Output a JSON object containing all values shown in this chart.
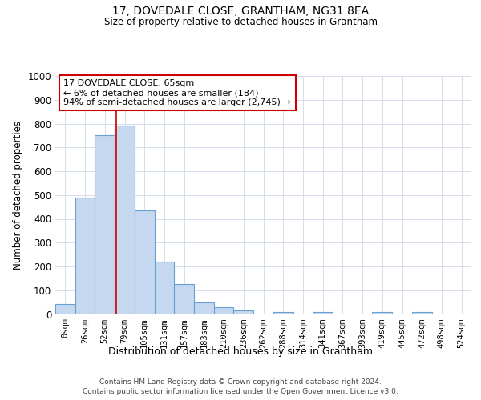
{
  "title": "17, DOVEDALE CLOSE, GRANTHAM, NG31 8EA",
  "subtitle": "Size of property relative to detached houses in Grantham",
  "xlabel": "Distribution of detached houses by size in Grantham",
  "ylabel": "Number of detached properties",
  "bar_labels": [
    "0sqm",
    "26sqm",
    "52sqm",
    "79sqm",
    "105sqm",
    "131sqm",
    "157sqm",
    "183sqm",
    "210sqm",
    "236sqm",
    "262sqm",
    "288sqm",
    "314sqm",
    "341sqm",
    "367sqm",
    "393sqm",
    "419sqm",
    "445sqm",
    "472sqm",
    "498sqm",
    "524sqm"
  ],
  "bar_values": [
    42,
    490,
    750,
    790,
    435,
    220,
    125,
    50,
    28,
    15,
    0,
    10,
    0,
    7,
    0,
    0,
    8,
    0,
    8,
    0,
    0
  ],
  "bar_color": "#c5d8f0",
  "bar_edge_color": "#6aa0d0",
  "ylim": [
    0,
    1000
  ],
  "yticks": [
    0,
    100,
    200,
    300,
    400,
    500,
    600,
    700,
    800,
    900,
    1000
  ],
  "vline_color": "#cc0000",
  "vline_x": 2.575,
  "annotation_text": "17 DOVEDALE CLOSE: 65sqm\n← 6% of detached houses are smaller (184)\n94% of semi-detached houses are larger (2,745) →",
  "annotation_box_edgecolor": "#cc0000",
  "footer_line1": "Contains HM Land Registry data © Crown copyright and database right 2024.",
  "footer_line2": "Contains public sector information licensed under the Open Government Licence v3.0.",
  "background_color": "#ffffff",
  "grid_color": "#d0d8e8"
}
